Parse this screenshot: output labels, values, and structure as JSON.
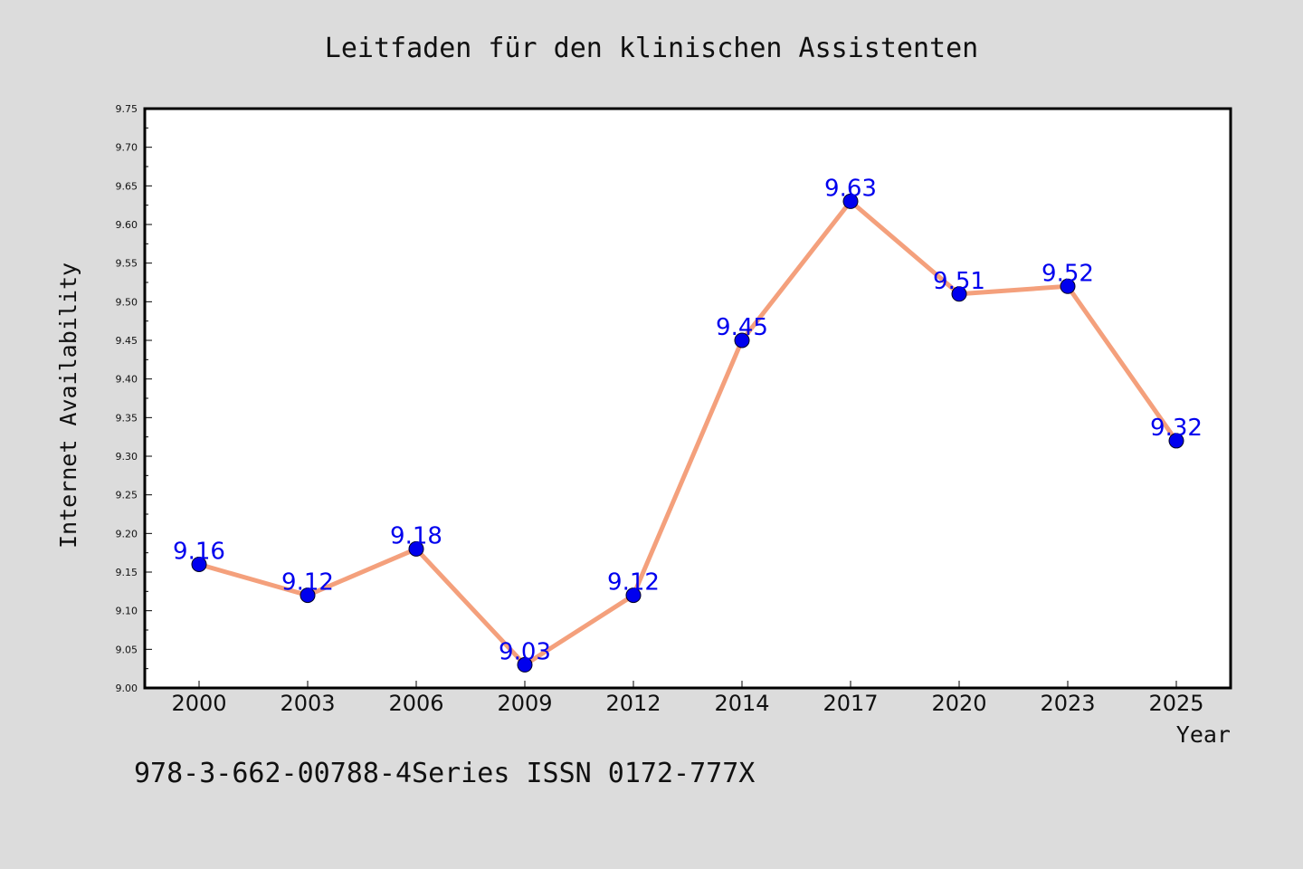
{
  "chart_data": {
    "type": "line",
    "title": "Leitfaden für den klinischen Assistenten",
    "xlabel": "Year",
    "ylabel": "Internet Availability",
    "categories": [
      "2000",
      "2003",
      "2006",
      "2009",
      "2012",
      "2014",
      "2017",
      "2020",
      "2023",
      "2025"
    ],
    "series": [
      {
        "values": [
          9.16,
          9.12,
          9.18,
          9.03,
          9.12,
          9.45,
          9.63,
          9.51,
          9.52,
          9.32
        ]
      }
    ],
    "data_labels": [
      "9.16",
      "9.12",
      "9.18",
      "9.03",
      "9.12",
      "9.45",
      "9.63",
      "9.51",
      "9.52",
      "9.32"
    ],
    "y_ticks": [
      "9.00",
      "9.05",
      "9.10",
      "9.15",
      "9.20",
      "9.25",
      "9.30",
      "9.35",
      "9.40",
      "9.45",
      "9.50",
      "9.55",
      "9.60",
      "9.65",
      "9.70",
      "9.75"
    ],
    "ylim": [
      9.0,
      9.75
    ],
    "grid": false,
    "legend": "none",
    "colors": {
      "background": "#dcdcdc",
      "plot_background": "#ffffff",
      "line": "#f4a07c",
      "marker": "#0000ee",
      "data_label": "#0000ee"
    }
  },
  "footer_text": "978-3-662-00788-4Series ISSN 0172-777X"
}
